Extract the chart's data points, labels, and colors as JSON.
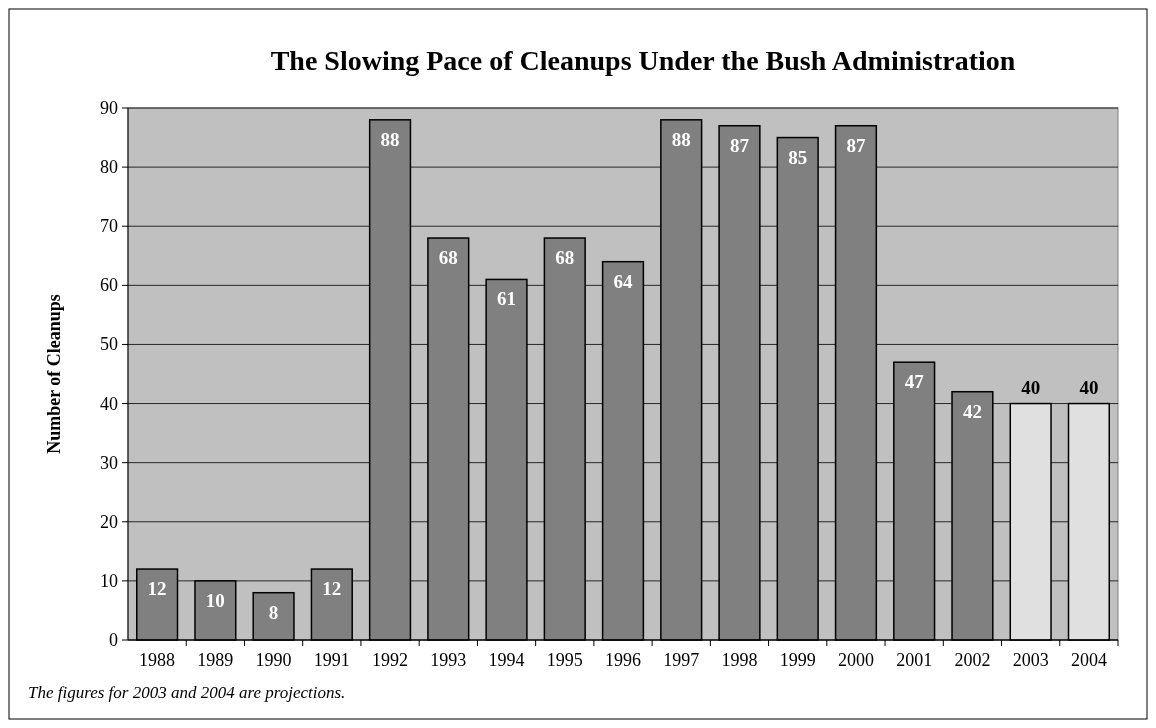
{
  "chart_data": {
    "type": "bar",
    "title": "The Slowing Pace of Cleanups Under the Bush Administration",
    "ylabel": "Number of Cleanups",
    "categories": [
      "1988",
      "1989",
      "1990",
      "1991",
      "1992",
      "1993",
      "1994",
      "1995",
      "1996",
      "1997",
      "1998",
      "1999",
      "2000",
      "2001",
      "2002",
      "2003",
      "2004"
    ],
    "values": [
      12,
      10,
      8,
      12,
      88,
      68,
      61,
      68,
      64,
      88,
      87,
      85,
      87,
      47,
      42,
      40,
      40
    ],
    "colors": [
      "#808080",
      "#808080",
      "#808080",
      "#808080",
      "#808080",
      "#808080",
      "#808080",
      "#808080",
      "#808080",
      "#808080",
      "#808080",
      "#808080",
      "#808080",
      "#808080",
      "#808080",
      "#e0e0e0",
      "#e0e0e0"
    ],
    "ylim": [
      0,
      90
    ],
    "yticks": [
      0,
      10,
      20,
      30,
      40,
      50,
      60,
      70,
      80,
      90
    ],
    "grid": "y",
    "data_labels": true,
    "annotations": [
      "The figures for 2003 and 2004 are projections."
    ]
  }
}
